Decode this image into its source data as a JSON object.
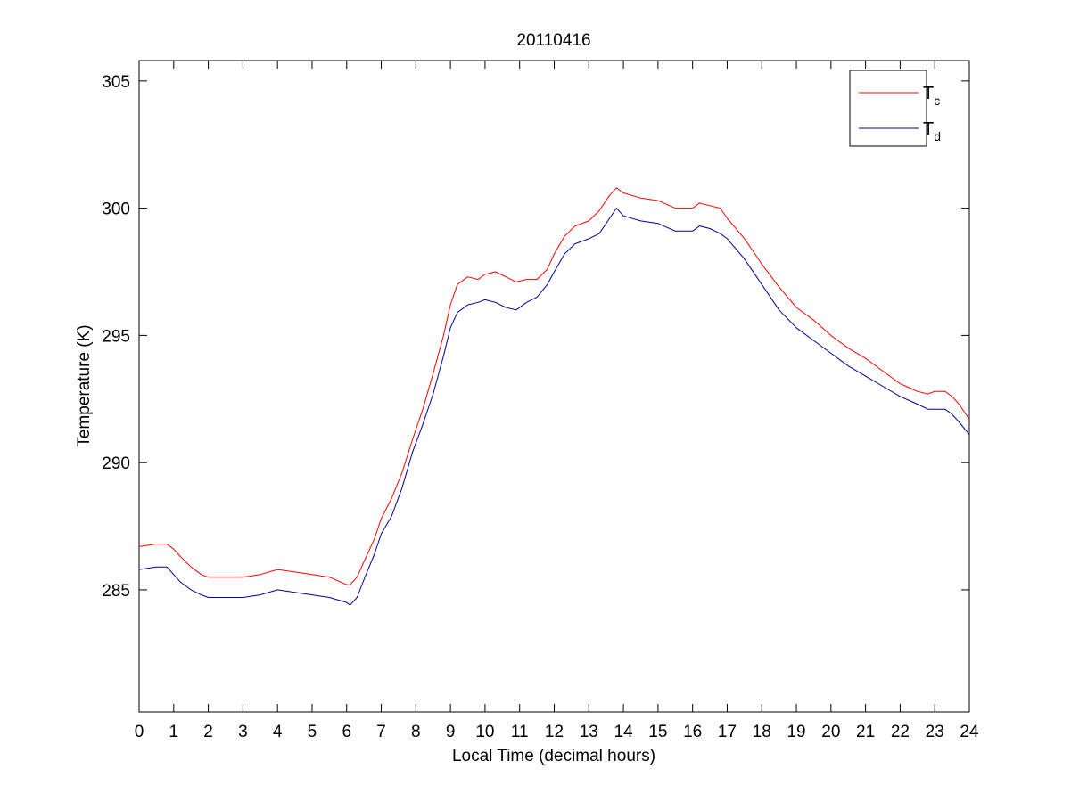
{
  "chart_data": {
    "type": "line",
    "title": "20110416",
    "xlabel": "Local Time (decimal hours)",
    "ylabel": "Temperature (K)",
    "xlim": [
      0,
      24
    ],
    "ylim": [
      280.2,
      305.8
    ],
    "xticks": [
      0,
      1,
      2,
      3,
      4,
      5,
      6,
      7,
      8,
      9,
      10,
      11,
      12,
      13,
      14,
      15,
      16,
      17,
      18,
      19,
      20,
      21,
      22,
      23,
      24
    ],
    "yticks": [
      285,
      290,
      295,
      300,
      305
    ],
    "grid": false,
    "legend_position": "top-right",
    "series": [
      {
        "name": "T",
        "name_subscript": "c",
        "color": "#ff0000",
        "x": [
          0,
          0.5,
          0.8,
          1.0,
          1.2,
          1.5,
          1.8,
          2.0,
          2.5,
          3.0,
          3.5,
          4.0,
          4.5,
          5.0,
          5.5,
          6.0,
          6.1,
          6.3,
          6.5,
          6.8,
          7.0,
          7.3,
          7.6,
          7.9,
          8.2,
          8.5,
          8.8,
          9.0,
          9.2,
          9.5,
          9.8,
          10.0,
          10.3,
          10.6,
          10.9,
          11.2,
          11.5,
          11.8,
          12.0,
          12.3,
          12.6,
          13.0,
          13.3,
          13.6,
          13.8,
          14.0,
          14.5,
          15.0,
          15.5,
          16.0,
          16.2,
          16.5,
          16.8,
          17.0,
          17.5,
          18.0,
          18.5,
          19.0,
          19.5,
          20.0,
          20.5,
          21.0,
          21.5,
          22.0,
          22.5,
          22.8,
          23.0,
          23.3,
          23.5,
          23.7,
          24.0
        ],
        "values": [
          286.7,
          286.8,
          286.8,
          286.6,
          286.3,
          285.9,
          285.6,
          285.5,
          285.5,
          285.5,
          285.6,
          285.8,
          285.7,
          285.6,
          285.5,
          285.2,
          285.2,
          285.5,
          286.1,
          287.0,
          287.8,
          288.6,
          289.6,
          290.9,
          292.1,
          293.5,
          295.0,
          296.2,
          297.0,
          297.3,
          297.2,
          297.4,
          297.5,
          297.3,
          297.1,
          297.2,
          297.2,
          297.6,
          298.2,
          298.9,
          299.3,
          299.5,
          299.9,
          300.5,
          300.8,
          300.6,
          300.4,
          300.3,
          300.0,
          300.0,
          300.2,
          300.1,
          300.0,
          299.6,
          298.8,
          297.8,
          296.9,
          296.1,
          295.6,
          295.0,
          294.5,
          294.1,
          293.6,
          293.1,
          292.8,
          292.7,
          292.8,
          292.8,
          292.6,
          292.3,
          291.7
        ]
      },
      {
        "name": "T",
        "name_subscript": "d",
        "color": "#000099",
        "x": [
          0,
          0.5,
          0.8,
          1.0,
          1.2,
          1.5,
          1.8,
          2.0,
          2.5,
          3.0,
          3.5,
          4.0,
          4.5,
          5.0,
          5.5,
          6.0,
          6.1,
          6.3,
          6.5,
          6.8,
          7.0,
          7.3,
          7.6,
          7.9,
          8.2,
          8.5,
          8.8,
          9.0,
          9.2,
          9.5,
          9.8,
          10.0,
          10.3,
          10.6,
          10.9,
          11.2,
          11.5,
          11.8,
          12.0,
          12.3,
          12.6,
          13.0,
          13.3,
          13.6,
          13.8,
          14.0,
          14.5,
          15.0,
          15.5,
          16.0,
          16.2,
          16.5,
          16.8,
          17.0,
          17.5,
          18.0,
          18.5,
          19.0,
          19.5,
          20.0,
          20.5,
          21.0,
          21.5,
          22.0,
          22.5,
          22.8,
          23.0,
          23.3,
          23.5,
          23.7,
          24.0
        ],
        "values": [
          285.8,
          285.9,
          285.9,
          285.6,
          285.3,
          285.0,
          284.8,
          284.7,
          284.7,
          284.7,
          284.8,
          285.0,
          284.9,
          284.8,
          284.7,
          284.5,
          284.4,
          284.7,
          285.4,
          286.4,
          287.2,
          287.9,
          289.0,
          290.4,
          291.5,
          292.7,
          294.2,
          295.3,
          295.9,
          296.2,
          296.3,
          296.4,
          296.3,
          296.1,
          296.0,
          296.3,
          296.5,
          297.0,
          297.5,
          298.2,
          298.6,
          298.8,
          299.0,
          299.6,
          300.0,
          299.7,
          299.5,
          299.4,
          299.1,
          299.1,
          299.3,
          299.2,
          299.0,
          298.8,
          298.0,
          297.0,
          296.0,
          295.3,
          294.8,
          294.3,
          293.8,
          293.4,
          293.0,
          292.6,
          292.3,
          292.1,
          292.1,
          292.1,
          291.9,
          291.6,
          291.1
        ]
      }
    ]
  }
}
